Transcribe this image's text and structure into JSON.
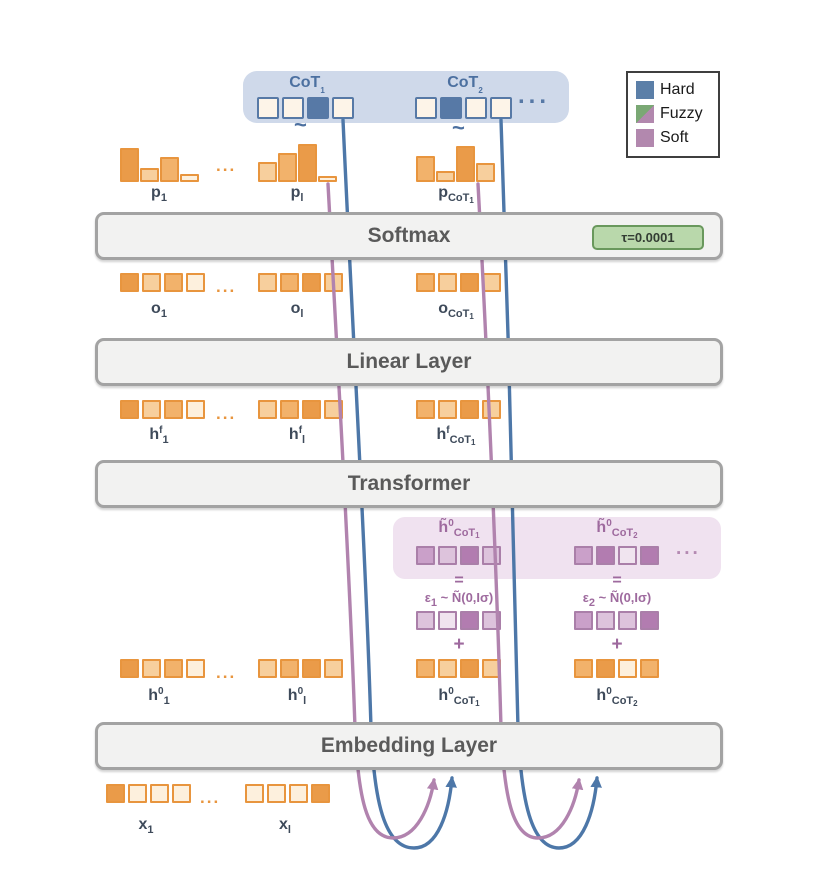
{
  "palette": {
    "hard_blue": "#5b7fa8",
    "fuzzy_green": "#7aa874",
    "soft_purple": "#b288ae",
    "orange_dark": "#ea9b49",
    "orange_med": "#f2b26b",
    "orange_light": "#f7cf9d",
    "orange_cream": "#fdf0dd",
    "orange_border": "#e8953e",
    "purple_dark": "#b27cb0",
    "purple_med": "#caa0c9",
    "purple_light": "#ddc3dc",
    "purple_cream": "#f0e4ef",
    "purple_box_bg": "#f0e2f0",
    "blue_box_bg": "#cfd9ea",
    "layer_fill": "#f2f2f1",
    "layer_border": "#a3a3a3",
    "badge_fill": "#b9d8ab",
    "badge_border": "#69985c"
  },
  "legend": {
    "items": [
      {
        "label": "Hard"
      },
      {
        "label": "Fuzzy"
      },
      {
        "label": "Soft"
      }
    ]
  },
  "cot": {
    "g1": {
      "label": [
        {
          "t": "CoT"
        },
        {
          "t": "1",
          "pos": "subsub"
        }
      ],
      "cells": [
        "empty",
        "empty",
        "filled",
        "empty"
      ]
    },
    "g2": {
      "label": [
        {
          "t": "CoT"
        },
        {
          "t": "2",
          "pos": "subsub"
        }
      ],
      "cells": [
        "empty",
        "filled",
        "empty",
        "empty"
      ]
    },
    "dots": "..."
  },
  "marks": {
    "tilde": "~",
    "equals": "=",
    "plus": "+",
    "ellipsis": "..."
  },
  "layers": {
    "softmax": "Softmax",
    "tau": "τ=0.0001",
    "linear": "Linear Layer",
    "transformer": "Transformer",
    "embedding": "Embedding Layer"
  },
  "dists": {
    "p1": {
      "label": [
        {
          "t": "p"
        },
        {
          "t": "1",
          "pos": "sub"
        }
      ],
      "bars": [
        {
          "h": 34,
          "s": "dark"
        },
        {
          "h": 14,
          "s": "light"
        },
        {
          "h": 25,
          "s": "med"
        },
        {
          "h": 8,
          "s": "cream"
        }
      ]
    },
    "pl": {
      "label": [
        {
          "t": "p"
        },
        {
          "t": "l",
          "pos": "sub"
        }
      ],
      "bars": [
        {
          "h": 20,
          "s": "light"
        },
        {
          "h": 29,
          "s": "med"
        },
        {
          "h": 38,
          "s": "dark"
        },
        {
          "h": 6,
          "s": "cream"
        }
      ]
    },
    "pcot1": {
      "label": [
        {
          "t": "p"
        },
        {
          "t": "CoT",
          "pos": "sub"
        },
        {
          "t": "1",
          "pos": "subsub"
        }
      ],
      "bars": [
        {
          "h": 26,
          "s": "med"
        },
        {
          "h": 11,
          "s": "light"
        },
        {
          "h": 36,
          "s": "dark"
        },
        {
          "h": 19,
          "s": "light"
        }
      ]
    }
  },
  "vectors": {
    "o1": {
      "label": [
        {
          "t": "o"
        },
        {
          "t": "1",
          "pos": "sub"
        }
      ],
      "cells": [
        "dark",
        "light",
        "med",
        "cream"
      ]
    },
    "ol": {
      "label": [
        {
          "t": "o"
        },
        {
          "t": "l",
          "pos": "sub"
        }
      ],
      "cells": [
        "light",
        "med",
        "dark",
        "light"
      ]
    },
    "ocot1": {
      "label": [
        {
          "t": "o"
        },
        {
          "t": "CoT",
          "pos": "sub"
        },
        {
          "t": "1",
          "pos": "subsub"
        }
      ],
      "cells": [
        "med",
        "light",
        "dark",
        "light"
      ]
    },
    "hf1": {
      "label": [
        {
          "t": "h"
        },
        {
          "t": "f",
          "pos": "sup"
        },
        {
          "t": "1",
          "pos": "sub"
        }
      ],
      "cells": [
        "dark",
        "light",
        "med",
        "cream"
      ]
    },
    "hfl": {
      "label": [
        {
          "t": "h"
        },
        {
          "t": "f",
          "pos": "sup"
        },
        {
          "t": "l",
          "pos": "sub"
        }
      ],
      "cells": [
        "light",
        "med",
        "dark",
        "light"
      ]
    },
    "hfcot1": {
      "label": [
        {
          "t": "h"
        },
        {
          "t": "f",
          "pos": "sup"
        },
        {
          "t": "CoT",
          "pos": "sub"
        },
        {
          "t": "1",
          "pos": "subsub"
        }
      ],
      "cells": [
        "med",
        "light",
        "dark",
        "light"
      ]
    },
    "h01": {
      "label": [
        {
          "t": "h"
        },
        {
          "t": "0",
          "pos": "sup"
        },
        {
          "t": "1",
          "pos": "sub"
        }
      ],
      "cells": [
        "dark",
        "light",
        "med",
        "cream"
      ]
    },
    "h0l": {
      "label": [
        {
          "t": "h"
        },
        {
          "t": "0",
          "pos": "sup"
        },
        {
          "t": "l",
          "pos": "sub"
        }
      ],
      "cells": [
        "light",
        "med",
        "dark",
        "light"
      ]
    },
    "h0cot1": {
      "label": [
        {
          "t": "h"
        },
        {
          "t": "0",
          "pos": "sup"
        },
        {
          "t": "CoT",
          "pos": "sub"
        },
        {
          "t": "1",
          "pos": "subsub"
        }
      ],
      "cells": [
        "med",
        "light",
        "dark",
        "light"
      ]
    },
    "h0cot2": {
      "label": [
        {
          "t": "h"
        },
        {
          "t": "0",
          "pos": "sup"
        },
        {
          "t": "CoT",
          "pos": "sub"
        },
        {
          "t": "2",
          "pos": "subsub"
        }
      ],
      "cells": [
        "med",
        "dark",
        "cream",
        "med"
      ]
    },
    "x1": {
      "label": [
        {
          "t": "x"
        },
        {
          "t": "1",
          "pos": "sub"
        }
      ],
      "cells": [
        "dark",
        "cream",
        "cream",
        "cream"
      ]
    },
    "xl": {
      "label": [
        {
          "t": "x"
        },
        {
          "t": "l",
          "pos": "sub"
        }
      ],
      "cells": [
        "cream",
        "cream",
        "cream",
        "dark"
      ]
    }
  },
  "soft": {
    "ht1": {
      "label": [
        {
          "t": "h̃"
        },
        {
          "t": "0",
          "pos": "sup"
        },
        {
          "t": "CoT",
          "pos": "sub"
        },
        {
          "t": "1",
          "pos": "subsub"
        }
      ],
      "cells": [
        "med",
        "light",
        "dark",
        "light"
      ]
    },
    "ht2": {
      "label": [
        {
          "t": "h̃"
        },
        {
          "t": "0",
          "pos": "sup"
        },
        {
          "t": "CoT",
          "pos": "sub"
        },
        {
          "t": "2",
          "pos": "subsub"
        }
      ],
      "cells": [
        "med",
        "dark",
        "cream",
        "dark"
      ]
    },
    "eps1": {
      "label": [
        {
          "t": "ε"
        },
        {
          "t": "1",
          "pos": "sub"
        },
        {
          "t": " ~ Ñ(0,Iσ)"
        }
      ],
      "cells": [
        "light",
        "cream",
        "dark",
        "light"
      ]
    },
    "eps2": {
      "label": [
        {
          "t": "ε"
        },
        {
          "t": "2",
          "pos": "sub"
        },
        {
          "t": " ~ Ñ(0,Iσ)"
        }
      ],
      "cells": [
        "med",
        "light",
        "light",
        "dark"
      ]
    },
    "dots": "..."
  }
}
